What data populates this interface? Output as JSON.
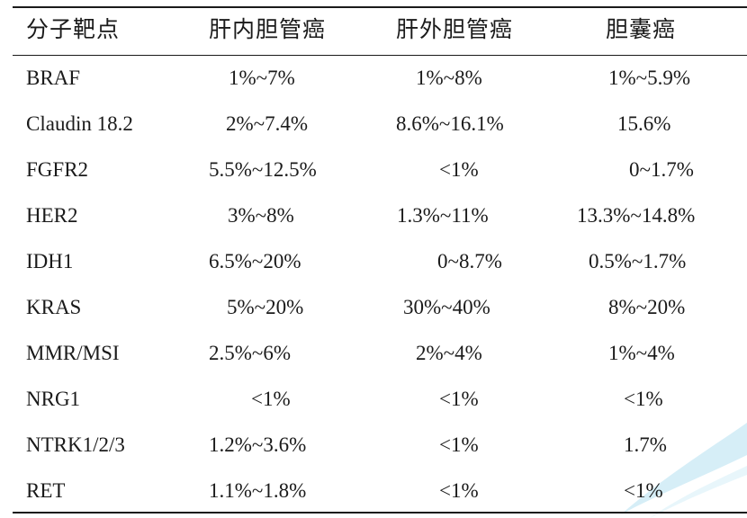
{
  "table": {
    "headers": [
      "分子靶点",
      "肝内胆管癌",
      "肝外胆管癌",
      "胆囊癌"
    ],
    "rows": [
      {
        "target": "BRAF",
        "intrahepatic": "1%~7%",
        "extrahepatic": "1%~8%",
        "gallbladder": "1%~5.9%"
      },
      {
        "target": "Claudin 18.2",
        "intrahepatic": "2%~7.4%",
        "extrahepatic": "8.6%~16.1%",
        "gallbladder": "15.6%"
      },
      {
        "target": "FGFR2",
        "intrahepatic": "5.5%~12.5%",
        "extrahepatic": "<1%",
        "gallbladder": "0~1.7%"
      },
      {
        "target": "HER2",
        "intrahepatic": "3%~8%",
        "extrahepatic": "1.3%~11%",
        "gallbladder": "13.3%~14.8%"
      },
      {
        "target": "IDH1",
        "intrahepatic": "6.5%~20%",
        "extrahepatic": "0~8.7%",
        "gallbladder": "0.5%~1.7%"
      },
      {
        "target": "KRAS",
        "intrahepatic": "5%~20%",
        "extrahepatic": "30%~40%",
        "gallbladder": "8%~20%"
      },
      {
        "target": "MMR/MSI",
        "intrahepatic": "2.5%~6%",
        "extrahepatic": "2%~4%",
        "gallbladder": "1%~4%"
      },
      {
        "target": "NRG1",
        "intrahepatic": "<1%",
        "extrahepatic": "<1%",
        "gallbladder": "<1%"
      },
      {
        "target": "NTRK1/2/3",
        "intrahepatic": "1.2%~3.6%",
        "extrahepatic": "<1%",
        "gallbladder": "1.7%"
      },
      {
        "target": "RET",
        "intrahepatic": "1.1%~1.8%",
        "extrahepatic": "<1%",
        "gallbladder": "<1%"
      }
    ]
  }
}
